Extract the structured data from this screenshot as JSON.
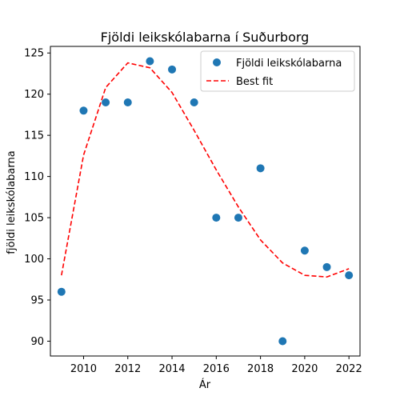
{
  "chart_data": {
    "type": "scatter",
    "title": "Fjöldi leikskólabarna í Suðurborg",
    "xlabel": "Ár",
    "ylabel": "fjöldi leikskólabarna",
    "xlim": [
      2008.5,
      2022.5
    ],
    "ylim": [
      88.2,
      125.8
    ],
    "xticks": [
      2010,
      2012,
      2014,
      2016,
      2018,
      2020,
      2022
    ],
    "yticks": [
      90,
      95,
      100,
      105,
      110,
      115,
      120,
      125
    ],
    "grid": false,
    "legend_position": "top-right",
    "series": [
      {
        "name": "Fjöldi leikskólabarna",
        "kind": "scatter",
        "color": "#1f77b4",
        "x": [
          2009,
          2010,
          2011,
          2012,
          2013,
          2014,
          2015,
          2016,
          2017,
          2018,
          2019,
          2020,
          2021,
          2022
        ],
        "y": [
          96,
          118,
          119,
          119,
          124,
          123,
          119,
          105,
          105,
          111,
          90,
          101,
          99,
          98
        ]
      },
      {
        "name": "Best fit",
        "kind": "line",
        "style": "dashed",
        "color": "#ff0000",
        "x": [
          2009,
          2010,
          2011,
          2012,
          2013,
          2014,
          2015,
          2016,
          2017,
          2018,
          2019,
          2020,
          2021,
          2022
        ],
        "y": [
          98.0,
          112.6,
          120.8,
          123.8,
          123.2,
          120.2,
          115.6,
          110.8,
          106.3,
          102.3,
          99.5,
          98.0,
          97.8,
          98.8
        ]
      }
    ]
  }
}
